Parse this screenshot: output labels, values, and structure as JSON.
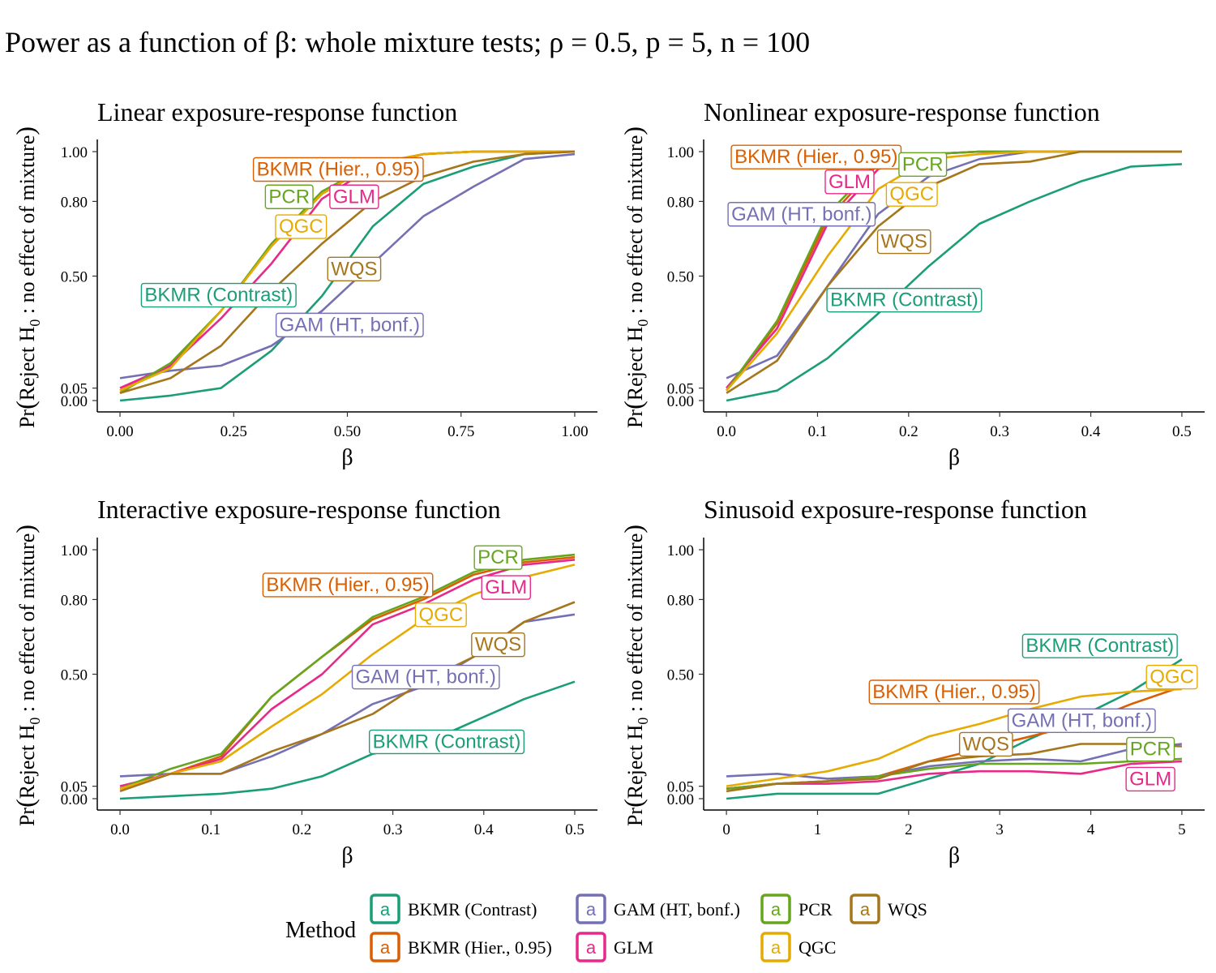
{
  "figure": {
    "title_prefix": "Power as a function of ",
    "title_beta": "β",
    "title_suffix": ": whole mixture tests; ρ = 0.5, p = 5, n = 100"
  },
  "yaxis_label": {
    "pre": "Pr",
    "open": "(",
    "mid": "Reject H",
    "sub": "0",
    "post": " :  no effect of mixture",
    "close": ")"
  },
  "xaxis_label": "β",
  "legend": {
    "title": "Method",
    "key_glyph": "a",
    "items": [
      {
        "method": "BKMR (Contrast)",
        "label": "BKMR (Contrast)"
      },
      {
        "method": "GAM (HT, bonf.)",
        "label": "GAM (HT, bonf.)"
      },
      {
        "method": "PCR",
        "label": "PCR"
      },
      {
        "method": "WQS",
        "label": "WQS"
      },
      {
        "method": "BKMR (Hier., 0.95)",
        "label": "BKMR (Hier., 0.95)"
      },
      {
        "method": "GLM",
        "label": "GLM"
      },
      {
        "method": "QGC",
        "label": "QGC"
      }
    ]
  },
  "colors": {
    "BKMR (Contrast)": "#1b9e77",
    "BKMR (Hier., 0.95)": "#d95f02",
    "GAM (HT, bonf.)": "#7570b3",
    "GLM": "#e7298a",
    "PCR": "#66a61e",
    "QGC": "#e6ab02",
    "WQS": "#a6761d"
  },
  "chart_data": [
    {
      "type": "line",
      "title": "Linear exposure-response function",
      "xlabel": "β",
      "ylabel": "Pr(Reject H0 : no effect of mixture)",
      "xlim": [
        -0.05,
        1.05
      ],
      "xticks": [
        0,
        0.25,
        0.5,
        0.75,
        1
      ],
      "xtick_labels": [
        "0.00",
        "0.25",
        "0.50",
        "0.75",
        "1.00"
      ],
      "ylim": [
        0,
        1
      ],
      "ytick_labels": [
        "0.00",
        "0.05",
        "0.50",
        "0.80",
        "1.00"
      ],
      "x": [
        0,
        0.111,
        0.222,
        0.333,
        0.444,
        0.556,
        0.667,
        0.778,
        0.889,
        1
      ],
      "series": [
        {
          "name": "BKMR (Contrast)",
          "values": [
            0.0,
            0.02,
            0.05,
            0.2,
            0.42,
            0.7,
            0.87,
            0.94,
            0.99,
            1.0
          ]
        },
        {
          "name": "BKMR (Hier., 0.95)",
          "values": [
            0.04,
            0.14,
            0.36,
            0.62,
            0.83,
            0.95,
            0.99,
            1.0,
            1.0,
            1.0
          ]
        },
        {
          "name": "GAM (HT, bonf.)",
          "values": [
            0.09,
            0.12,
            0.14,
            0.22,
            0.36,
            0.55,
            0.74,
            0.86,
            0.97,
            0.99
          ]
        },
        {
          "name": "GLM",
          "values": [
            0.05,
            0.14,
            0.33,
            0.55,
            0.81,
            0.94,
            0.99,
            1.0,
            1.0,
            1.0
          ]
        },
        {
          "name": "PCR",
          "values": [
            0.03,
            0.15,
            0.36,
            0.63,
            0.84,
            0.95,
            0.99,
            1.0,
            1.0,
            1.0
          ]
        },
        {
          "name": "QGC",
          "values": [
            0.04,
            0.13,
            0.36,
            0.62,
            0.83,
            0.95,
            0.99,
            1.0,
            1.0,
            1.0
          ]
        },
        {
          "name": "WQS",
          "values": [
            0.03,
            0.09,
            0.22,
            0.44,
            0.63,
            0.8,
            0.9,
            0.96,
            0.99,
            1.0
          ]
        }
      ],
      "annotations": [
        {
          "method": "BKMR (Hier., 0.95)",
          "text": "BKMR (Hier., 0.95)",
          "x": 0.48,
          "y": 0.93
        },
        {
          "method": "PCR",
          "text": "PCR",
          "x": 0.372,
          "y": 0.82
        },
        {
          "method": "GLM",
          "text": "GLM",
          "x": 0.515,
          "y": 0.82
        },
        {
          "method": "QGC",
          "text": "QGC",
          "x": 0.398,
          "y": 0.7
        },
        {
          "method": "WQS",
          "text": "WQS",
          "x": 0.515,
          "y": 0.53
        },
        {
          "method": "BKMR (Contrast)",
          "text": "BKMR (Contrast)",
          "x": 0.217,
          "y": 0.425
        },
        {
          "method": "GAM (HT, bonf.)",
          "text": "GAM (HT, bonf.)",
          "x": 0.505,
          "y": 0.305
        }
      ]
    },
    {
      "type": "line",
      "title": "Nonlinear exposure-response function",
      "xlabel": "β",
      "ylabel": "Pr(Reject H0 : no effect of mixture)",
      "xlim": [
        -0.025,
        0.525
      ],
      "xticks": [
        0,
        0.1,
        0.2,
        0.3,
        0.4,
        0.5
      ],
      "xtick_labels": [
        "0.0",
        "0.1",
        "0.2",
        "0.3",
        "0.4",
        "0.5"
      ],
      "ylim": [
        0,
        1
      ],
      "ytick_labels": [
        "0.00",
        "0.05",
        "0.50",
        "0.80",
        "1.00"
      ],
      "x": [
        0,
        0.0556,
        0.1111,
        0.1667,
        0.2222,
        0.2778,
        0.3333,
        0.3889,
        0.4444,
        0.5
      ],
      "series": [
        {
          "name": "BKMR (Contrast)",
          "values": [
            0.0,
            0.04,
            0.17,
            0.35,
            0.54,
            0.71,
            0.8,
            0.88,
            0.94,
            0.95
          ]
        },
        {
          "name": "BKMR (Hier., 0.95)",
          "values": [
            0.04,
            0.31,
            0.73,
            0.95,
            0.99,
            1.0,
            1.0,
            1.0,
            1.0,
            1.0
          ]
        },
        {
          "name": "GAM (HT, bonf.)",
          "values": [
            0.09,
            0.18,
            0.46,
            0.75,
            0.9,
            0.97,
            1.0,
            1.0,
            1.0,
            1.0
          ]
        },
        {
          "name": "GLM",
          "values": [
            0.05,
            0.29,
            0.71,
            0.93,
            0.99,
            1.0,
            1.0,
            1.0,
            1.0,
            1.0
          ]
        },
        {
          "name": "PCR",
          "values": [
            0.04,
            0.32,
            0.75,
            0.96,
            0.99,
            1.0,
            1.0,
            1.0,
            1.0,
            1.0
          ]
        },
        {
          "name": "QGC",
          "values": [
            0.04,
            0.27,
            0.58,
            0.85,
            0.97,
            0.99,
            1.0,
            1.0,
            1.0,
            1.0
          ]
        },
        {
          "name": "WQS",
          "values": [
            0.03,
            0.16,
            0.46,
            0.7,
            0.86,
            0.95,
            0.96,
            1.0,
            1.0,
            1.0
          ]
        }
      ],
      "annotations": [
        {
          "method": "BKMR (Hier., 0.95)",
          "text": "BKMR (Hier., 0.95)",
          "x": 0.0985,
          "y": 0.98
        },
        {
          "method": "PCR",
          "text": "PCR",
          "x": 0.2155,
          "y": 0.95
        },
        {
          "method": "GLM",
          "text": "GLM",
          "x": 0.1352,
          "y": 0.88
        },
        {
          "method": "QGC",
          "text": "QGC",
          "x": 0.2035,
          "y": 0.83
        },
        {
          "method": "GAM (HT, bonf.)",
          "text": "GAM (HT, bonf.)",
          "x": 0.0825,
          "y": 0.75
        },
        {
          "method": "WQS",
          "text": "WQS",
          "x": 0.195,
          "y": 0.64
        },
        {
          "method": "BKMR (Contrast)",
          "text": "BKMR (Contrast)",
          "x": 0.1952,
          "y": 0.405
        }
      ]
    },
    {
      "type": "line",
      "title": "Interactive exposure-response function",
      "xlabel": "β",
      "ylabel": "Pr(Reject H0 : no effect of mixture)",
      "xlim": [
        -0.025,
        0.525
      ],
      "xticks": [
        0,
        0.1,
        0.2,
        0.3,
        0.4,
        0.5
      ],
      "xtick_labels": [
        "0.0",
        "0.1",
        "0.2",
        "0.3",
        "0.4",
        "0.5"
      ],
      "ylim": [
        0,
        1
      ],
      "ytick_labels": [
        "0.00",
        "0.05",
        "0.50",
        "0.80",
        "1.00"
      ],
      "x": [
        0,
        0.0556,
        0.1111,
        0.1667,
        0.2222,
        0.2778,
        0.3333,
        0.3889,
        0.4444,
        0.5
      ],
      "series": [
        {
          "name": "BKMR (Contrast)",
          "values": [
            0.0,
            0.01,
            0.02,
            0.04,
            0.09,
            0.18,
            0.22,
            0.31,
            0.4,
            0.47
          ]
        },
        {
          "name": "BKMR (Hier., 0.95)",
          "values": [
            0.04,
            0.1,
            0.17,
            0.41,
            0.57,
            0.72,
            0.8,
            0.9,
            0.95,
            0.97
          ]
        },
        {
          "name": "GAM (HT, bonf.)",
          "values": [
            0.09,
            0.1,
            0.1,
            0.17,
            0.26,
            0.38,
            0.45,
            0.57,
            0.71,
            0.74
          ]
        },
        {
          "name": "GLM",
          "values": [
            0.05,
            0.1,
            0.16,
            0.36,
            0.5,
            0.7,
            0.78,
            0.88,
            0.94,
            0.96
          ]
        },
        {
          "name": "PCR",
          "values": [
            0.04,
            0.12,
            0.18,
            0.41,
            0.57,
            0.73,
            0.81,
            0.91,
            0.96,
            0.98
          ]
        },
        {
          "name": "QGC",
          "values": [
            0.04,
            0.1,
            0.15,
            0.29,
            0.42,
            0.58,
            0.72,
            0.82,
            0.89,
            0.94
          ]
        },
        {
          "name": "WQS",
          "values": [
            0.03,
            0.1,
            0.1,
            0.19,
            0.26,
            0.34,
            0.47,
            0.57,
            0.71,
            0.79
          ]
        }
      ],
      "annotations": [
        {
          "method": "PCR",
          "text": "PCR",
          "x": 0.4158,
          "y": 0.97
        },
        {
          "method": "BKMR (Hier., 0.95)",
          "text": "BKMR (Hier., 0.95)",
          "x": 0.2505,
          "y": 0.86
        },
        {
          "method": "GLM",
          "text": "GLM",
          "x": 0.4245,
          "y": 0.85
        },
        {
          "method": "QGC",
          "text": "QGC",
          "x": 0.3528,
          "y": 0.74
        },
        {
          "method": "WQS",
          "text": "WQS",
          "x": 0.4158,
          "y": 0.62
        },
        {
          "method": "GAM (HT, bonf.)",
          "text": "GAM (HT, bonf.)",
          "x": 0.3362,
          "y": 0.49
        },
        {
          "method": "BKMR (Contrast)",
          "text": "BKMR (Contrast)",
          "x": 0.3592,
          "y": 0.23
        }
      ]
    },
    {
      "type": "line",
      "title": "Sinusoid exposure-response function",
      "xlabel": "β",
      "ylabel": "Pr(Reject H0 : no effect of mixture)",
      "xlim": [
        -0.25,
        5.25
      ],
      "xticks": [
        0,
        1,
        2,
        3,
        4,
        5
      ],
      "xtick_labels": [
        "0",
        "1",
        "2",
        "3",
        "4",
        "5"
      ],
      "ylim": [
        0,
        1
      ],
      "ytick_labels": [
        "0.00",
        "0.05",
        "0.50",
        "0.80",
        "1.00"
      ],
      "x": [
        0,
        0.556,
        1.111,
        1.667,
        2.222,
        2.778,
        3.333,
        3.889,
        4.444,
        5
      ],
      "series": [
        {
          "name": "BKMR (Contrast)",
          "values": [
            0.0,
            0.02,
            0.02,
            0.02,
            0.08,
            0.14,
            0.24,
            0.33,
            0.43,
            0.56
          ]
        },
        {
          "name": "BKMR (Hier., 0.95)",
          "values": [
            0.04,
            0.06,
            0.07,
            0.09,
            0.15,
            0.2,
            0.25,
            0.3,
            0.38,
            0.45
          ]
        },
        {
          "name": "GAM (HT, bonf.)",
          "values": [
            0.09,
            0.1,
            0.08,
            0.09,
            0.13,
            0.15,
            0.16,
            0.15,
            0.2,
            0.22
          ]
        },
        {
          "name": "GLM",
          "values": [
            0.04,
            0.06,
            0.06,
            0.07,
            0.1,
            0.11,
            0.11,
            0.1,
            0.14,
            0.15
          ]
        },
        {
          "name": "PCR",
          "values": [
            0.04,
            0.06,
            0.07,
            0.09,
            0.12,
            0.14,
            0.14,
            0.14,
            0.15,
            0.16
          ]
        },
        {
          "name": "QGC",
          "values": [
            0.05,
            0.08,
            0.11,
            0.16,
            0.25,
            0.3,
            0.36,
            0.41,
            0.43,
            0.44
          ]
        },
        {
          "name": "WQS",
          "values": [
            0.03,
            0.06,
            0.07,
            0.08,
            0.15,
            0.17,
            0.18,
            0.22,
            0.22,
            0.21
          ]
        }
      ],
      "annotations": [
        {
          "method": "BKMR (Contrast)",
          "text": "BKMR (Contrast)",
          "x": 4.1,
          "y": 0.615
        },
        {
          "method": "QGC",
          "text": "QGC",
          "x": 4.89,
          "y": 0.49
        },
        {
          "method": "BKMR (Hier., 0.95)",
          "text": "BKMR (Hier., 0.95)",
          "x": 2.5,
          "y": 0.43
        },
        {
          "method": "GAM (HT, bonf.)",
          "text": "GAM (HT, bonf.)",
          "x": 3.9,
          "y": 0.315
        },
        {
          "method": "WQS",
          "text": "WQS",
          "x": 2.85,
          "y": 0.22
        },
        {
          "method": "PCR",
          "text": "PCR",
          "x": 4.655,
          "y": 0.2
        },
        {
          "method": "GLM",
          "text": "GLM",
          "x": 4.655,
          "y": 0.08
        }
      ]
    }
  ]
}
